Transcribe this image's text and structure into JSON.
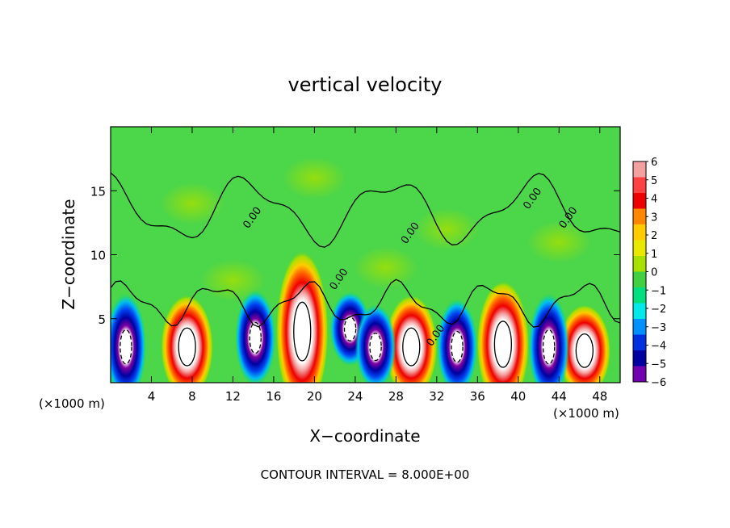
{
  "chart_data": {
    "type": "heatmap",
    "title": "vertical velocity",
    "xlabel": "X−coordinate",
    "ylabel": "Z−coordinate",
    "x_unit_left": "(×1000 m)",
    "x_unit_right": "(×1000 m)",
    "xlim": [
      0,
      50
    ],
    "ylim": [
      0,
      20
    ],
    "x_ticks": [
      4,
      8,
      12,
      16,
      20,
      24,
      28,
      32,
      36,
      40,
      44,
      48
    ],
    "x_tick_labels": [
      "4",
      "8",
      "12",
      "16",
      "20",
      "24",
      "28",
      "32",
      "36",
      "40",
      "44",
      "48"
    ],
    "y_ticks": [
      5,
      10,
      15
    ],
    "y_tick_labels": [
      "5",
      "10",
      "15"
    ],
    "footer": "CONTOUR INTERVAL = 8.000E+00",
    "contour_labels": [
      "0.00",
      "0.00",
      "0.00",
      "0.00",
      "0.00",
      "0.00"
    ],
    "colorbar": {
      "min": -6,
      "max": 6,
      "labels": [
        "6",
        "5",
        "4",
        "3",
        "2",
        "1",
        "0",
        "−1",
        "−2",
        "−3",
        "−4",
        "−5",
        "−6"
      ],
      "colors": [
        "#f3a0a0",
        "#ff4040",
        "#ee0000",
        "#ff8800",
        "#ffcc00",
        "#e8e800",
        "#a8e000",
        "#40d040",
        "#00e080",
        "#00e8e8",
        "#0090ff",
        "#0030e0",
        "#0000a0",
        "#7000b0"
      ]
    },
    "updrafts": [
      {
        "x": 7.5,
        "z": 2.8,
        "peak": 9
      },
      {
        "x": 18.8,
        "z": 4.0,
        "peak": 14
      },
      {
        "x": 29.5,
        "z": 2.8,
        "peak": 9
      },
      {
        "x": 38.5,
        "z": 3.0,
        "peak": 11
      },
      {
        "x": 46.5,
        "z": 2.5,
        "peak": 8
      }
    ],
    "downdrafts": [
      {
        "x": 1.5,
        "z": 2.8,
        "peak": -10
      },
      {
        "x": 14.2,
        "z": 3.5,
        "peak": -9
      },
      {
        "x": 23.5,
        "z": 4.2,
        "peak": -7
      },
      {
        "x": 26.0,
        "z": 2.8,
        "peak": -8
      },
      {
        "x": 34.0,
        "z": 2.8,
        "peak": -9
      },
      {
        "x": 43.0,
        "z": 2.8,
        "peak": -10
      }
    ]
  }
}
